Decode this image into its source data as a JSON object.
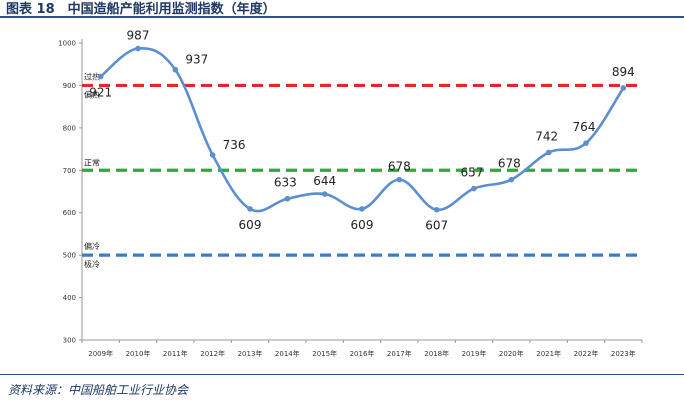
{
  "header": {
    "title": "图表 18　中国造船产能利用监测指数（年度）"
  },
  "footer": {
    "source": "资料来源：中国船舶工业行业协会"
  },
  "chart_data": {
    "type": "line",
    "title": "",
    "xlabel": "",
    "ylabel": "",
    "categories": [
      "2009年",
      "2010年",
      "2011年",
      "2012年",
      "2013年",
      "2014年",
      "2015年",
      "2016年",
      "2017年",
      "2018年",
      "2019年",
      "2020年",
      "2021年",
      "2022年",
      "2023年"
    ],
    "series": [
      {
        "values": [
          921,
          987,
          937,
          736,
          609,
          633,
          644,
          609,
          678,
          607,
          657,
          678,
          742,
          764,
          894
        ],
        "color": "#5b8fd0"
      }
    ],
    "data_labels": [
      "921",
      "987",
      "937",
      "736",
      "609",
      "633",
      "644",
      "609",
      "678",
      "607",
      "657",
      "678",
      "742",
      "764",
      "894"
    ],
    "highlight_last_label_color": "#e8262a",
    "yticks": [
      300,
      400,
      500,
      600,
      700,
      800,
      900,
      1000
    ],
    "ylim": [
      300,
      1000
    ],
    "grid": false,
    "reference_lines": [
      {
        "value": 900,
        "color": "#e8262a",
        "labels": [
          "过热",
          "偏热"
        ]
      },
      {
        "value": 700,
        "color": "#2eaa3a",
        "labels": [
          "正常"
        ]
      },
      {
        "value": 500,
        "color": "#3a7cc8",
        "labels": [
          "偏冷",
          "极冷"
        ]
      }
    ]
  }
}
